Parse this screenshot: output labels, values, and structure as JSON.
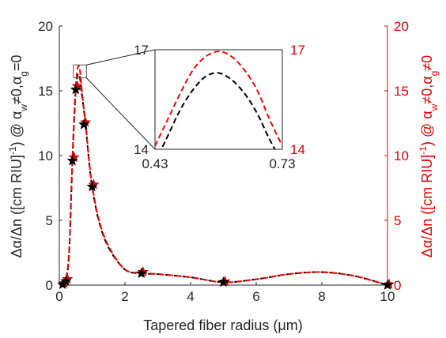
{
  "chart_data": {
    "type": "line",
    "xlabel": "Tapered fiber radius (μm)",
    "ylabel_left": {
      "pre": "Δα/Δn ([cm RIU]",
      "sup1": "-1",
      "mid": ") @ α",
      "sub1": "w",
      "mid2": "≠0,α",
      "sub2": "g",
      "post": "=0"
    },
    "ylabel_right": {
      "pre": "Δα/Δn ([cm RIU]",
      "sup1": "-1",
      "mid": ") @ α",
      "sub1": "w",
      "mid2": "≠0,α",
      "sub2": "g",
      "post": "≠0"
    },
    "xlim": [
      0,
      10
    ],
    "ylim": [
      0,
      20
    ],
    "x_ticks": [
      "0",
      "2",
      "4",
      "6",
      "8",
      "10"
    ],
    "y_ticks_left": [
      "0",
      "5",
      "10",
      "15",
      "20"
    ],
    "y_ticks_right": [
      "0",
      "5",
      "10",
      "15",
      "20"
    ],
    "colors": {
      "black_series": "#000000",
      "red_series": "#ff0000",
      "right_axis": "#e00000"
    },
    "series": [
      {
        "color": "#000000",
        "style": "dashed",
        "axis": "left",
        "x": [
          0.1,
          0.15,
          0.2,
          0.3,
          0.4,
          0.5,
          0.6,
          0.7,
          0.8,
          0.9,
          1.0,
          1.2,
          1.5,
          2.0,
          2.5,
          3.0,
          4.0,
          5.0,
          6.0,
          7.0,
          8.0,
          9.0,
          10.0
        ],
        "y": [
          0.05,
          0.15,
          0.3,
          2.5,
          9.6,
          15.0,
          16.3,
          14.5,
          12.4,
          9.7,
          7.6,
          5.0,
          2.9,
          1.2,
          0.9,
          0.85,
          0.6,
          0.22,
          0.45,
          0.85,
          1.0,
          0.7,
          0.0
        ]
      },
      {
        "color": "#ff0000",
        "style": "dashed",
        "axis": "right",
        "x": [
          0.1,
          0.15,
          0.2,
          0.3,
          0.4,
          0.5,
          0.6,
          0.7,
          0.8,
          0.9,
          1.0,
          1.2,
          1.5,
          2.0,
          2.5,
          3.0,
          4.0,
          5.0,
          6.0,
          7.0,
          8.0,
          9.0,
          10.0
        ],
        "y": [
          0.08,
          0.2,
          0.4,
          2.7,
          9.8,
          15.3,
          16.95,
          14.7,
          12.5,
          9.8,
          7.7,
          5.1,
          3.0,
          1.2,
          0.95,
          0.85,
          0.6,
          0.22,
          0.45,
          0.85,
          1.0,
          0.7,
          0.0
        ]
      }
    ],
    "markers": {
      "black": {
        "x": [
          0.1,
          0.2,
          0.4,
          0.5,
          0.75,
          1.0,
          2.5,
          5.0,
          10.0
        ],
        "y": [
          0.05,
          0.3,
          9.6,
          15.1,
          12.4,
          7.6,
          0.9,
          0.22,
          0.0
        ]
      },
      "red": {
        "x": [
          0.1,
          0.2,
          0.4,
          0.5,
          0.75,
          1.0,
          2.5,
          5.0,
          10.0
        ],
        "y": [
          0.08,
          0.4,
          9.8,
          15.3,
          12.5,
          7.7,
          0.95,
          0.22,
          0.0
        ]
      }
    },
    "inset": {
      "xlim": [
        0.43,
        0.73
      ],
      "ylim": [
        14,
        17
      ],
      "x_ticks": [
        "0.43",
        "0.73"
      ],
      "y_ticks_left": [
        "14",
        "17"
      ],
      "y_ticks_right": [
        "14",
        "17"
      ],
      "zoom_box_data": {
        "x": [
          0.43,
          0.73
        ],
        "y": [
          16.0,
          17.0
        ]
      },
      "series": [
        {
          "color": "#000000",
          "x": [
            0.43,
            0.46,
            0.49,
            0.52,
            0.55,
            0.58,
            0.61,
            0.64,
            0.67,
            0.7,
            0.73
          ],
          "y": [
            13.6,
            14.4,
            15.2,
            15.8,
            16.2,
            16.3,
            16.1,
            15.7,
            15.1,
            14.3,
            13.6
          ]
        },
        {
          "color": "#ff0000",
          "x": [
            0.43,
            0.46,
            0.49,
            0.52,
            0.55,
            0.58,
            0.61,
            0.64,
            0.67,
            0.7,
            0.73
          ],
          "y": [
            14.1,
            14.9,
            15.7,
            16.4,
            16.8,
            16.95,
            16.8,
            16.4,
            15.8,
            14.9,
            14.1
          ]
        }
      ]
    }
  }
}
